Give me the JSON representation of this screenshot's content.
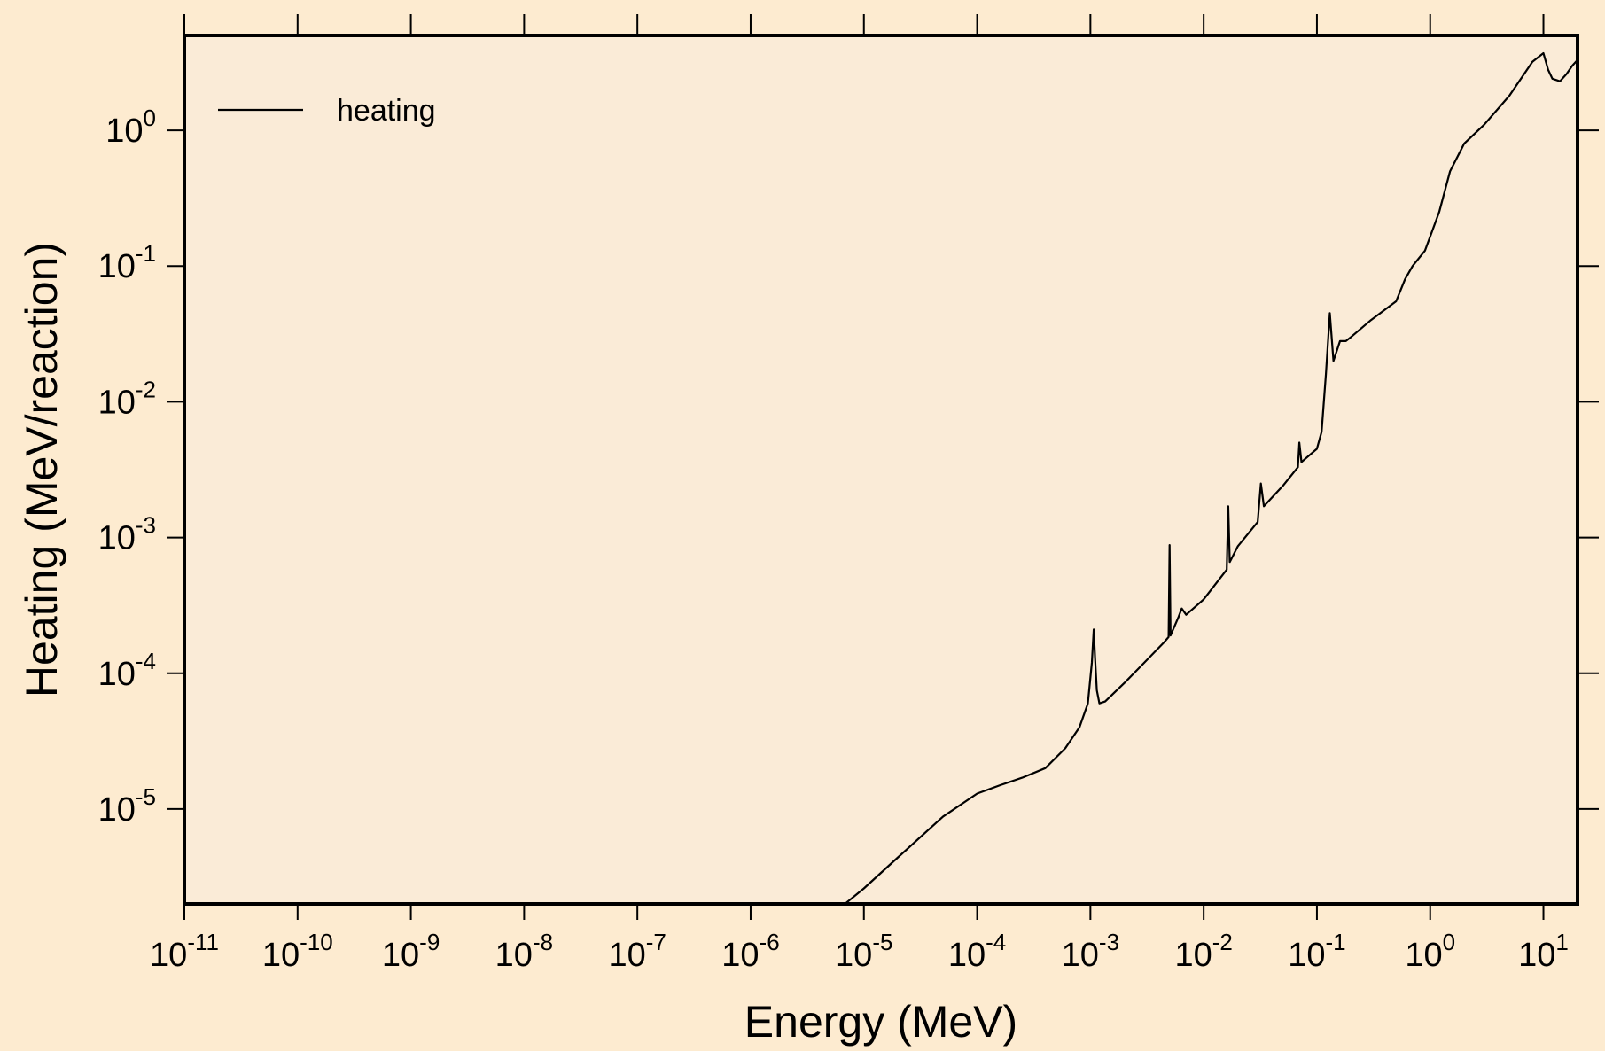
{
  "colors": {
    "page_background": "#fdebd0",
    "plot_background": "#faebd7",
    "line": "#000000"
  },
  "chart_data": {
    "type": "line",
    "title": "",
    "xlabel": "Energy (MeV)",
    "ylabel": "Heating (MeV/reaction)",
    "x_scale": "log",
    "y_scale": "log",
    "xlim": [
      1e-11,
      20
    ],
    "ylim": [
      2e-06,
      5
    ],
    "grid": false,
    "legend_position": "top-left",
    "x_ticks": [
      {
        "base": "10",
        "exp": "-11",
        "value": 1e-11
      },
      {
        "base": "10",
        "exp": "-10",
        "value": 1e-10
      },
      {
        "base": "10",
        "exp": "-9",
        "value": 1e-09
      },
      {
        "base": "10",
        "exp": "-8",
        "value": 1e-08
      },
      {
        "base": "10",
        "exp": "-7",
        "value": 1e-07
      },
      {
        "base": "10",
        "exp": "-6",
        "value": 1e-06
      },
      {
        "base": "10",
        "exp": "-5",
        "value": 1e-05
      },
      {
        "base": "10",
        "exp": "-4",
        "value": 0.0001
      },
      {
        "base": "10",
        "exp": "-3",
        "value": 0.001
      },
      {
        "base": "10",
        "exp": "-2",
        "value": 0.01
      },
      {
        "base": "10",
        "exp": "-1",
        "value": 0.1
      },
      {
        "base": "10",
        "exp": "0",
        "value": 1
      },
      {
        "base": "10",
        "exp": "1",
        "value": 10
      }
    ],
    "y_ticks": [
      {
        "base": "10",
        "exp": "-5",
        "value": 1e-05
      },
      {
        "base": "10",
        "exp": "-4",
        "value": 0.0001
      },
      {
        "base": "10",
        "exp": "-3",
        "value": 0.001
      },
      {
        "base": "10",
        "exp": "-2",
        "value": 0.01
      },
      {
        "base": "10",
        "exp": "-1",
        "value": 0.1
      },
      {
        "base": "10",
        "exp": "0",
        "value": 1
      }
    ],
    "series": [
      {
        "name": "heating",
        "x": [
          6.8e-06,
          1e-05,
          2e-05,
          5e-05,
          0.0001,
          0.00016,
          0.00025,
          0.0004,
          0.0006,
          0.0008,
          0.00095,
          0.00103,
          0.00107,
          0.0011,
          0.00114,
          0.0012,
          0.00135,
          0.002,
          0.003,
          0.0045,
          0.0049,
          0.005,
          0.0051,
          0.006,
          0.0064,
          0.007,
          0.01,
          0.016,
          0.0165,
          0.017,
          0.02,
          0.03,
          0.032,
          0.034,
          0.05,
          0.068,
          0.07,
          0.073,
          0.1,
          0.11,
          0.12,
          0.13,
          0.14,
          0.16,
          0.18,
          0.2,
          0.3,
          0.5,
          0.6,
          0.7,
          0.9,
          1.2,
          1.5,
          2,
          3,
          5,
          8,
          10,
          11,
          12,
          14,
          16,
          18,
          20
        ],
        "y": [
          2e-06,
          2.6e-06,
          4.4e-06,
          8.8e-06,
          1.3e-05,
          1.5e-05,
          1.7e-05,
          2e-05,
          2.8e-05,
          4e-05,
          6e-05,
          0.00012,
          0.00021,
          0.00013,
          7.5e-05,
          6e-05,
          6.2e-05,
          8.5e-05,
          0.00012,
          0.00017,
          0.000185,
          0.00088,
          0.00019,
          0.00026,
          0.0003,
          0.00027,
          0.00035,
          0.00058,
          0.0017,
          0.00066,
          0.00086,
          0.0013,
          0.0025,
          0.0017,
          0.0024,
          0.0033,
          0.005,
          0.0036,
          0.0045,
          0.006,
          0.016,
          0.045,
          0.02,
          0.028,
          0.028,
          0.03,
          0.04,
          0.055,
          0.08,
          0.1,
          0.13,
          0.25,
          0.5,
          0.8,
          1.1,
          1.8,
          3.2,
          3.7,
          2.8,
          2.4,
          2.3,
          2.6,
          3,
          3.3
        ]
      }
    ]
  }
}
